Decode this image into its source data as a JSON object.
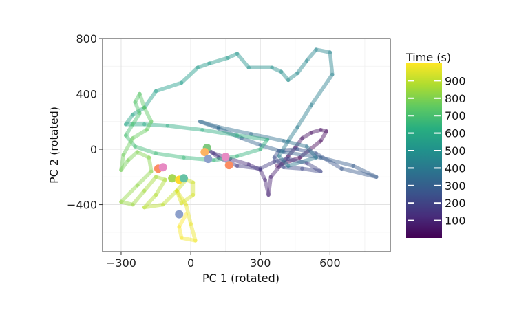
{
  "chart_data": {
    "type": "line",
    "xlabel": "PC 1 (rotated)",
    "ylabel": "PC 2 (rotated)",
    "xlim": [
      -380,
      860
    ],
    "ylim": [
      -740,
      800
    ],
    "x_ticks": [
      -300,
      0,
      300,
      600
    ],
    "y_ticks": [
      -400,
      0,
      400,
      800
    ],
    "x_tick_labels": [
      "−300",
      "0",
      "300",
      "600"
    ],
    "y_tick_labels": [
      "−400",
      "0",
      "400",
      "800"
    ],
    "grid": true,
    "colorbar": {
      "title": "Time (s)",
      "min": 0,
      "max": 1000,
      "ticks": [
        100,
        200,
        300,
        400,
        500,
        600,
        700,
        800,
        900
      ],
      "tick_labels": [
        "100",
        "200",
        "300",
        "400",
        "500",
        "600",
        "700",
        "800",
        "900"
      ],
      "colormap": "viridis"
    },
    "series": [
      {
        "values": [
          {
            "x": 370,
            "y": -120
          },
          {
            "x": 470,
            "y": -60
          },
          {
            "x": 560,
            "y": 60
          },
          {
            "x": 585,
            "y": 130
          },
          {
            "x": 560,
            "y": 140
          },
          {
            "x": 520,
            "y": 120
          },
          {
            "x": 480,
            "y": 80
          },
          {
            "x": 450,
            "y": 10
          },
          {
            "x": 420,
            "y": -50
          },
          {
            "x": 380,
            "y": -130
          },
          {
            "x": 345,
            "y": -200
          },
          {
            "x": 335,
            "y": -330
          },
          {
            "x": 320,
            "y": -220
          },
          {
            "x": 300,
            "y": -150
          },
          {
            "x": 250,
            "y": -110
          },
          {
            "x": 170,
            "y": -70
          },
          {
            "x": 100,
            "y": -30
          },
          {
            "x": 80,
            "y": -10
          },
          {
            "x": 120,
            "y": -60
          },
          {
            "x": 200,
            "y": -120
          },
          {
            "x": 300,
            "y": -140
          },
          {
            "x": 360,
            "y": -90
          },
          {
            "x": 420,
            "y": -70
          },
          {
            "x": 500,
            "y": -100
          },
          {
            "x": 560,
            "y": -160
          },
          {
            "x": 480,
            "y": -140
          },
          {
            "x": 400,
            "y": -130
          },
          {
            "x": 360,
            "y": -60
          },
          {
            "x": 380,
            "y": -10
          },
          {
            "x": 460,
            "y": 0
          },
          {
            "x": 540,
            "y": -30
          },
          {
            "x": 650,
            "y": -140
          },
          {
            "x": 800,
            "y": -200
          },
          {
            "x": 700,
            "y": -120
          },
          {
            "x": 560,
            "y": -60
          },
          {
            "x": 400,
            "y": -20
          },
          {
            "x": 300,
            "y": 30
          },
          {
            "x": 220,
            "y": 80
          },
          {
            "x": 120,
            "y": 150
          },
          {
            "x": 40,
            "y": 200
          },
          {
            "x": 120,
            "y": 160
          },
          {
            "x": 260,
            "y": 110
          },
          {
            "x": 400,
            "y": 60
          },
          {
            "x": 500,
            "y": 20
          },
          {
            "x": 540,
            "y": -60
          },
          {
            "x": 420,
            "y": -120
          },
          {
            "x": 380,
            "y": -50
          },
          {
            "x": 420,
            "y": 60
          },
          {
            "x": 460,
            "y": 160
          },
          {
            "x": 520,
            "y": 320
          },
          {
            "x": 610,
            "y": 540
          },
          {
            "x": 600,
            "y": 700
          },
          {
            "x": 540,
            "y": 720
          },
          {
            "x": 500,
            "y": 640
          },
          {
            "x": 460,
            "y": 550
          },
          {
            "x": 420,
            "y": 500
          },
          {
            "x": 390,
            "y": 560
          },
          {
            "x": 350,
            "y": 590
          },
          {
            "x": 250,
            "y": 590
          },
          {
            "x": 200,
            "y": 690
          },
          {
            "x": 160,
            "y": 660
          },
          {
            "x": 80,
            "y": 620
          },
          {
            "x": 30,
            "y": 590
          },
          {
            "x": -40,
            "y": 480
          },
          {
            "x": -150,
            "y": 420
          },
          {
            "x": -200,
            "y": 300
          },
          {
            "x": -250,
            "y": 250
          },
          {
            "x": -280,
            "y": 180
          },
          {
            "x": -200,
            "y": 180
          },
          {
            "x": -100,
            "y": 170
          },
          {
            "x": 50,
            "y": 140
          },
          {
            "x": 200,
            "y": 100
          },
          {
            "x": 330,
            "y": 70
          },
          {
            "x": 300,
            "y": 0
          },
          {
            "x": 200,
            "y": -50
          },
          {
            "x": 100,
            "y": -80
          },
          {
            "x": -30,
            "y": -60
          },
          {
            "x": -150,
            "y": -30
          },
          {
            "x": -240,
            "y": 20
          },
          {
            "x": -280,
            "y": 100
          },
          {
            "x": -250,
            "y": 180
          },
          {
            "x": -220,
            "y": 260
          },
          {
            "x": -240,
            "y": 340
          },
          {
            "x": -220,
            "y": 400
          },
          {
            "x": -200,
            "y": 300
          },
          {
            "x": -170,
            "y": 200
          },
          {
            "x": -190,
            "y": 140
          },
          {
            "x": -250,
            "y": 80
          },
          {
            "x": -290,
            "y": -40
          },
          {
            "x": -300,
            "y": -150
          },
          {
            "x": -270,
            "y": -80
          },
          {
            "x": -230,
            "y": -20
          },
          {
            "x": -180,
            "y": -60
          },
          {
            "x": -170,
            "y": -160
          },
          {
            "x": -230,
            "y": -260
          },
          {
            "x": -300,
            "y": -380
          },
          {
            "x": -250,
            "y": -400
          },
          {
            "x": -200,
            "y": -300
          },
          {
            "x": -150,
            "y": -200
          },
          {
            "x": -110,
            "y": -220
          },
          {
            "x": -150,
            "y": -330
          },
          {
            "x": -200,
            "y": -420
          },
          {
            "x": -120,
            "y": -400
          },
          {
            "x": -60,
            "y": -300
          },
          {
            "x": -20,
            "y": -220
          },
          {
            "x": 10,
            "y": -240
          },
          {
            "x": 10,
            "y": -330
          },
          {
            "x": -40,
            "y": -390
          },
          {
            "x": -60,
            "y": -300
          },
          {
            "x": -20,
            "y": -400
          },
          {
            "x": 0,
            "y": -540
          },
          {
            "x": 20,
            "y": -660
          },
          {
            "x": -40,
            "y": -640
          },
          {
            "x": -50,
            "y": -560
          },
          {
            "x": -20,
            "y": -470
          }
        ]
      }
    ],
    "markers": [
      {
        "x": 70,
        "y": 10,
        "color": "#7fc97f"
      },
      {
        "x": 60,
        "y": -20,
        "color": "#fdb462"
      },
      {
        "x": 75,
        "y": -70,
        "color": "#8da0cb"
      },
      {
        "x": 150,
        "y": -55,
        "color": "#e78ac3"
      },
      {
        "x": 165,
        "y": -115,
        "color": "#fc8d62"
      },
      {
        "x": -140,
        "y": -140,
        "color": "#fc8d62"
      },
      {
        "x": -120,
        "y": -130,
        "color": "#e78ac3"
      },
      {
        "x": -80,
        "y": -210,
        "color": "#a6d854"
      },
      {
        "x": -50,
        "y": -220,
        "color": "#ffd92f"
      },
      {
        "x": -30,
        "y": -210,
        "color": "#66c2a5"
      },
      {
        "x": -50,
        "y": -470,
        "color": "#8da0cb"
      }
    ]
  }
}
